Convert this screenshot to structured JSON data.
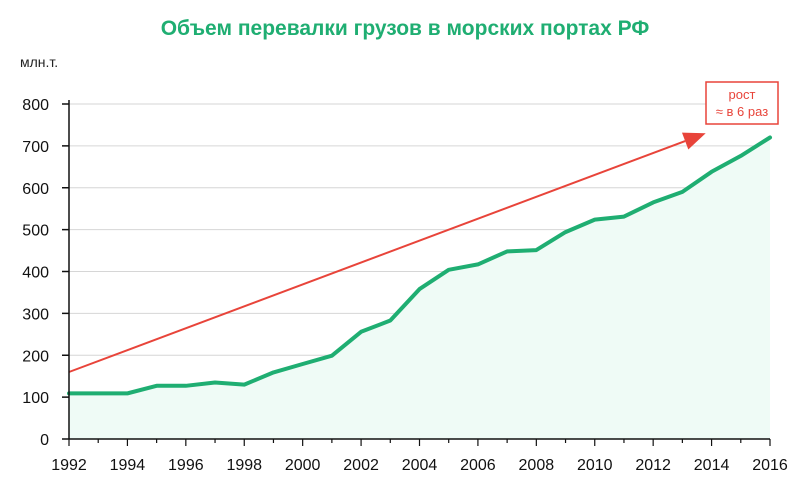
{
  "chart_data": {
    "type": "area",
    "title": "Объем перевалки грузов в морских портах РФ",
    "ylabel": "млн.т.",
    "xlabel": "",
    "x": [
      1992,
      1993,
      1994,
      1995,
      1996,
      1997,
      1998,
      1999,
      2000,
      2001,
      2002,
      2003,
      2004,
      2005,
      2006,
      2007,
      2008,
      2009,
      2010,
      2011,
      2012,
      2013,
      2014,
      2015,
      2016
    ],
    "values": [
      109,
      109,
      109,
      127,
      127,
      135,
      130,
      159,
      179,
      199,
      256,
      283,
      358,
      404,
      417,
      448,
      451,
      494,
      524,
      531,
      565,
      590,
      638,
      676,
      720
    ],
    "xlim": [
      1992,
      2016
    ],
    "ylim": [
      0,
      800
    ],
    "x_ticks": [
      "1992",
      "1994",
      "1996",
      "1998",
      "2000",
      "2002",
      "2004",
      "2006",
      "2008",
      "2010",
      "2012",
      "2014",
      "2016"
    ],
    "y_ticks": [
      "0",
      "100",
      "200",
      "300",
      "400",
      "500",
      "600",
      "700",
      "800"
    ],
    "grid": "horizontal",
    "trend_line": {
      "start": [
        1992,
        160
      ],
      "end": [
        2013.8,
        730
      ]
    },
    "annotation": {
      "line1": "рост",
      "line2": "≈ в 6 раз"
    },
    "colors": {
      "title": "#1fae72",
      "line": "#1fae72",
      "fill": "#effbf6",
      "trend": "#e8443a",
      "grid": "#d6d6d6",
      "axis": "#111111"
    }
  }
}
